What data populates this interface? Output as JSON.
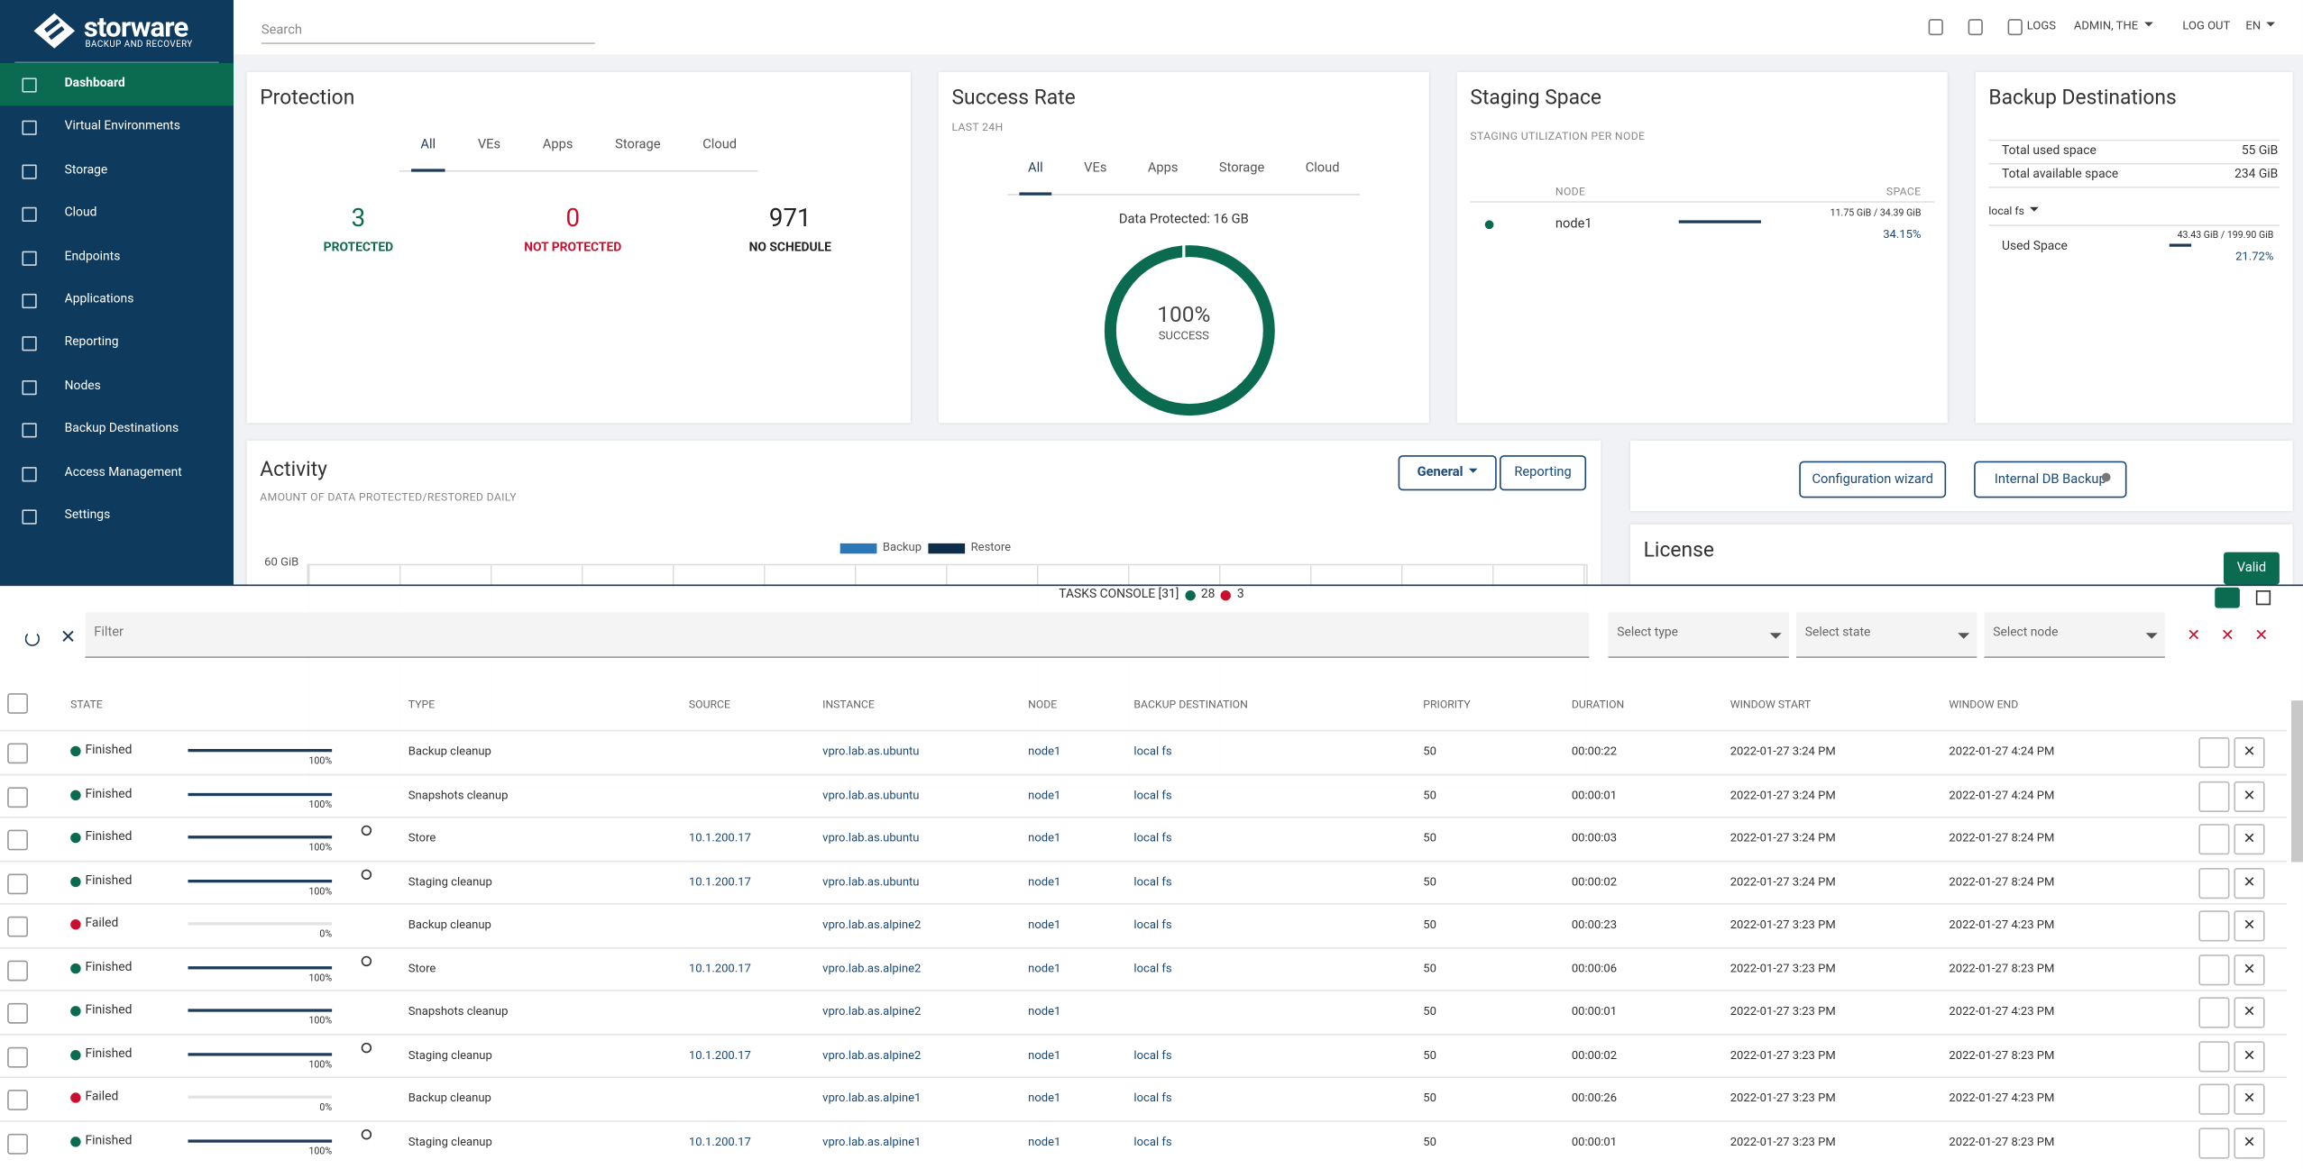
{
  "sidebar": {
    "brand": "storware",
    "tagline": "BACKUP AND RECOVERY",
    "menu": [
      "Dashboard",
      "Virtual Environments",
      "Storage",
      "Cloud",
      "Endpoints",
      "Applications",
      "Reporting",
      "Nodes",
      "Backup Destinations",
      "Access Management",
      "Settings"
    ]
  },
  "topbar": {
    "search": "Search",
    "items": [
      "LOGS",
      "ADMIN, THE",
      "LOG OUT",
      "EN"
    ]
  },
  "protection": {
    "title": "Protection",
    "tabs": [
      "All",
      "VEs",
      "Apps",
      "Storage",
      "Cloud"
    ],
    "stats": [
      {
        "value": 3,
        "label": "PROTECTED",
        "color": "#0b6b50"
      },
      {
        "value": 0,
        "label": "NOT PROTECTED",
        "color": "#c8102e"
      },
      {
        "value": 971,
        "label": "NO SCHEDULE",
        "color": "#222222"
      }
    ]
  },
  "success_rate": {
    "title": "Success Rate",
    "subtitle": "LAST 24H",
    "tabs": [
      "All",
      "VEs",
      "Apps",
      "Storage",
      "Cloud"
    ],
    "data_protected": "Data Protected: 16 GB",
    "percent": "100%",
    "label": "SUCCESS"
  },
  "staging": {
    "title": "Staging Space",
    "subtitle": "STAGING UTILIZATION PER NODE",
    "headers": [
      "NODE",
      "SPACE"
    ],
    "rows": [
      {
        "node": "node1",
        "usage": "11.75 GiB / 34.39 GiB",
        "percent": {
          "value": 34.15,
          "label": "34.15%"
        }
      }
    ]
  },
  "backup_destinations": {
    "title": "Backup Destinations",
    "rows": [
      [
        "Total used space",
        "55 GiB"
      ],
      [
        "Total available space",
        "234 GiB"
      ]
    ],
    "dropdown": "local fs",
    "used_label": "Used Space",
    "usage": "43.43 GiB / 199.90 GiB",
    "percent": {
      "value": 21.72,
      "label": "21.72%"
    }
  },
  "activity": {
    "title": "Activity",
    "subtitle": "AMOUNT OF DATA PROTECTED/RESTORED DAILY",
    "buttons": [
      "General",
      "Reporting"
    ],
    "legend": [
      {
        "name": "Backup",
        "color": "#2a78b8"
      },
      {
        "name": "Restore",
        "color": "#0d2f4c"
      }
    ],
    "y_label": "60 GiB"
  },
  "actions": {
    "buttons": [
      "Configuration wizard",
      "Internal DB Backup"
    ]
  },
  "license": {
    "title": "License",
    "status": "Valid"
  },
  "tasks": {
    "title": "TASKS CONSOLE [31]",
    "finished": 28,
    "failed": 3,
    "filter": "Filter",
    "selects": [
      "Select type",
      "Select state",
      "Select node"
    ],
    "state_colors": {
      "Finished": "#0b6b50",
      "Failed": "#c8102e"
    },
    "columns": [
      "STATE",
      "TYPE",
      "SOURCE",
      "INSTANCE",
      "NODE",
      "BACKUP DESTINATION",
      "PRIORITY",
      "DURATION",
      "WINDOW START",
      "WINDOW END"
    ],
    "rows": [
      {
        "state": "Finished",
        "progress": {
          "value": 100,
          "label": "100%"
        },
        "cells": [
          "Backup cleanup",
          null,
          "vpro.lab.as.ubuntu",
          "node1",
          "local fs",
          "50",
          "00:00:22",
          "2022-01-27 3:24 PM",
          "2022-01-27 4:24 PM"
        ]
      },
      {
        "state": "Finished",
        "progress": {
          "value": 100,
          "label": "100%"
        },
        "cells": [
          "Snapshots cleanup",
          null,
          "vpro.lab.as.ubuntu",
          "node1",
          "local fs",
          "50",
          "00:00:01",
          "2022-01-27 3:24 PM",
          "2022-01-27 4:24 PM"
        ]
      },
      {
        "state": "Finished",
        "progress": {
          "value": 100,
          "label": "100%"
        },
        "cells": [
          "Store",
          "10.1.200.17",
          "vpro.lab.as.ubuntu",
          "node1",
          "local fs",
          "50",
          "00:00:03",
          "2022-01-27 3:24 PM",
          "2022-01-27 8:24 PM"
        ]
      },
      {
        "state": "Finished",
        "progress": {
          "value": 100,
          "label": "100%"
        },
        "cells": [
          "Staging cleanup",
          "10.1.200.17",
          "vpro.lab.as.ubuntu",
          "node1",
          "local fs",
          "50",
          "00:00:02",
          "2022-01-27 3:24 PM",
          "2022-01-27 8:24 PM"
        ]
      },
      {
        "state": "Failed",
        "progress": {
          "value": 0,
          "label": "0%"
        },
        "cells": [
          "Backup cleanup",
          null,
          "vpro.lab.as.alpine2",
          "node1",
          "local fs",
          "50",
          "00:00:23",
          "2022-01-27 3:23 PM",
          "2022-01-27 4:23 PM"
        ]
      },
      {
        "state": "Finished",
        "progress": {
          "value": 100,
          "label": "100%"
        },
        "cells": [
          "Store",
          "10.1.200.17",
          "vpro.lab.as.alpine2",
          "node1",
          "local fs",
          "50",
          "00:00:06",
          "2022-01-27 3:23 PM",
          "2022-01-27 8:23 PM"
        ]
      },
      {
        "state": "Finished",
        "progress": {
          "value": 100,
          "label": "100%"
        },
        "cells": [
          "Snapshots cleanup",
          null,
          "vpro.lab.as.alpine2",
          "node1",
          null,
          "50",
          "00:00:01",
          "2022-01-27 3:23 PM",
          "2022-01-27 4:23 PM"
        ]
      },
      {
        "state": "Finished",
        "progress": {
          "value": 100,
          "label": "100%"
        },
        "cells": [
          "Staging cleanup",
          "10.1.200.17",
          "vpro.lab.as.alpine2",
          "node1",
          "local fs",
          "50",
          "00:00:02",
          "2022-01-27 3:23 PM",
          "2022-01-27 8:23 PM"
        ]
      },
      {
        "state": "Failed",
        "progress": {
          "value": 0,
          "label": "0%"
        },
        "cells": [
          "Backup cleanup",
          null,
          "vpro.lab.as.alpine1",
          "node1",
          "local fs",
          "50",
          "00:00:26",
          "2022-01-27 3:23 PM",
          "2022-01-27 4:23 PM"
        ]
      },
      {
        "state": "Finished",
        "progress": {
          "value": 100,
          "label": "100%"
        },
        "cells": [
          "Staging cleanup",
          "10.1.200.17",
          "vpro.lab.as.alpine1",
          "node1",
          "local fs",
          "50",
          "00:00:01",
          "2022-01-27 3:23 PM",
          "2022-01-27 8:23 PM"
        ]
      }
    ]
  }
}
